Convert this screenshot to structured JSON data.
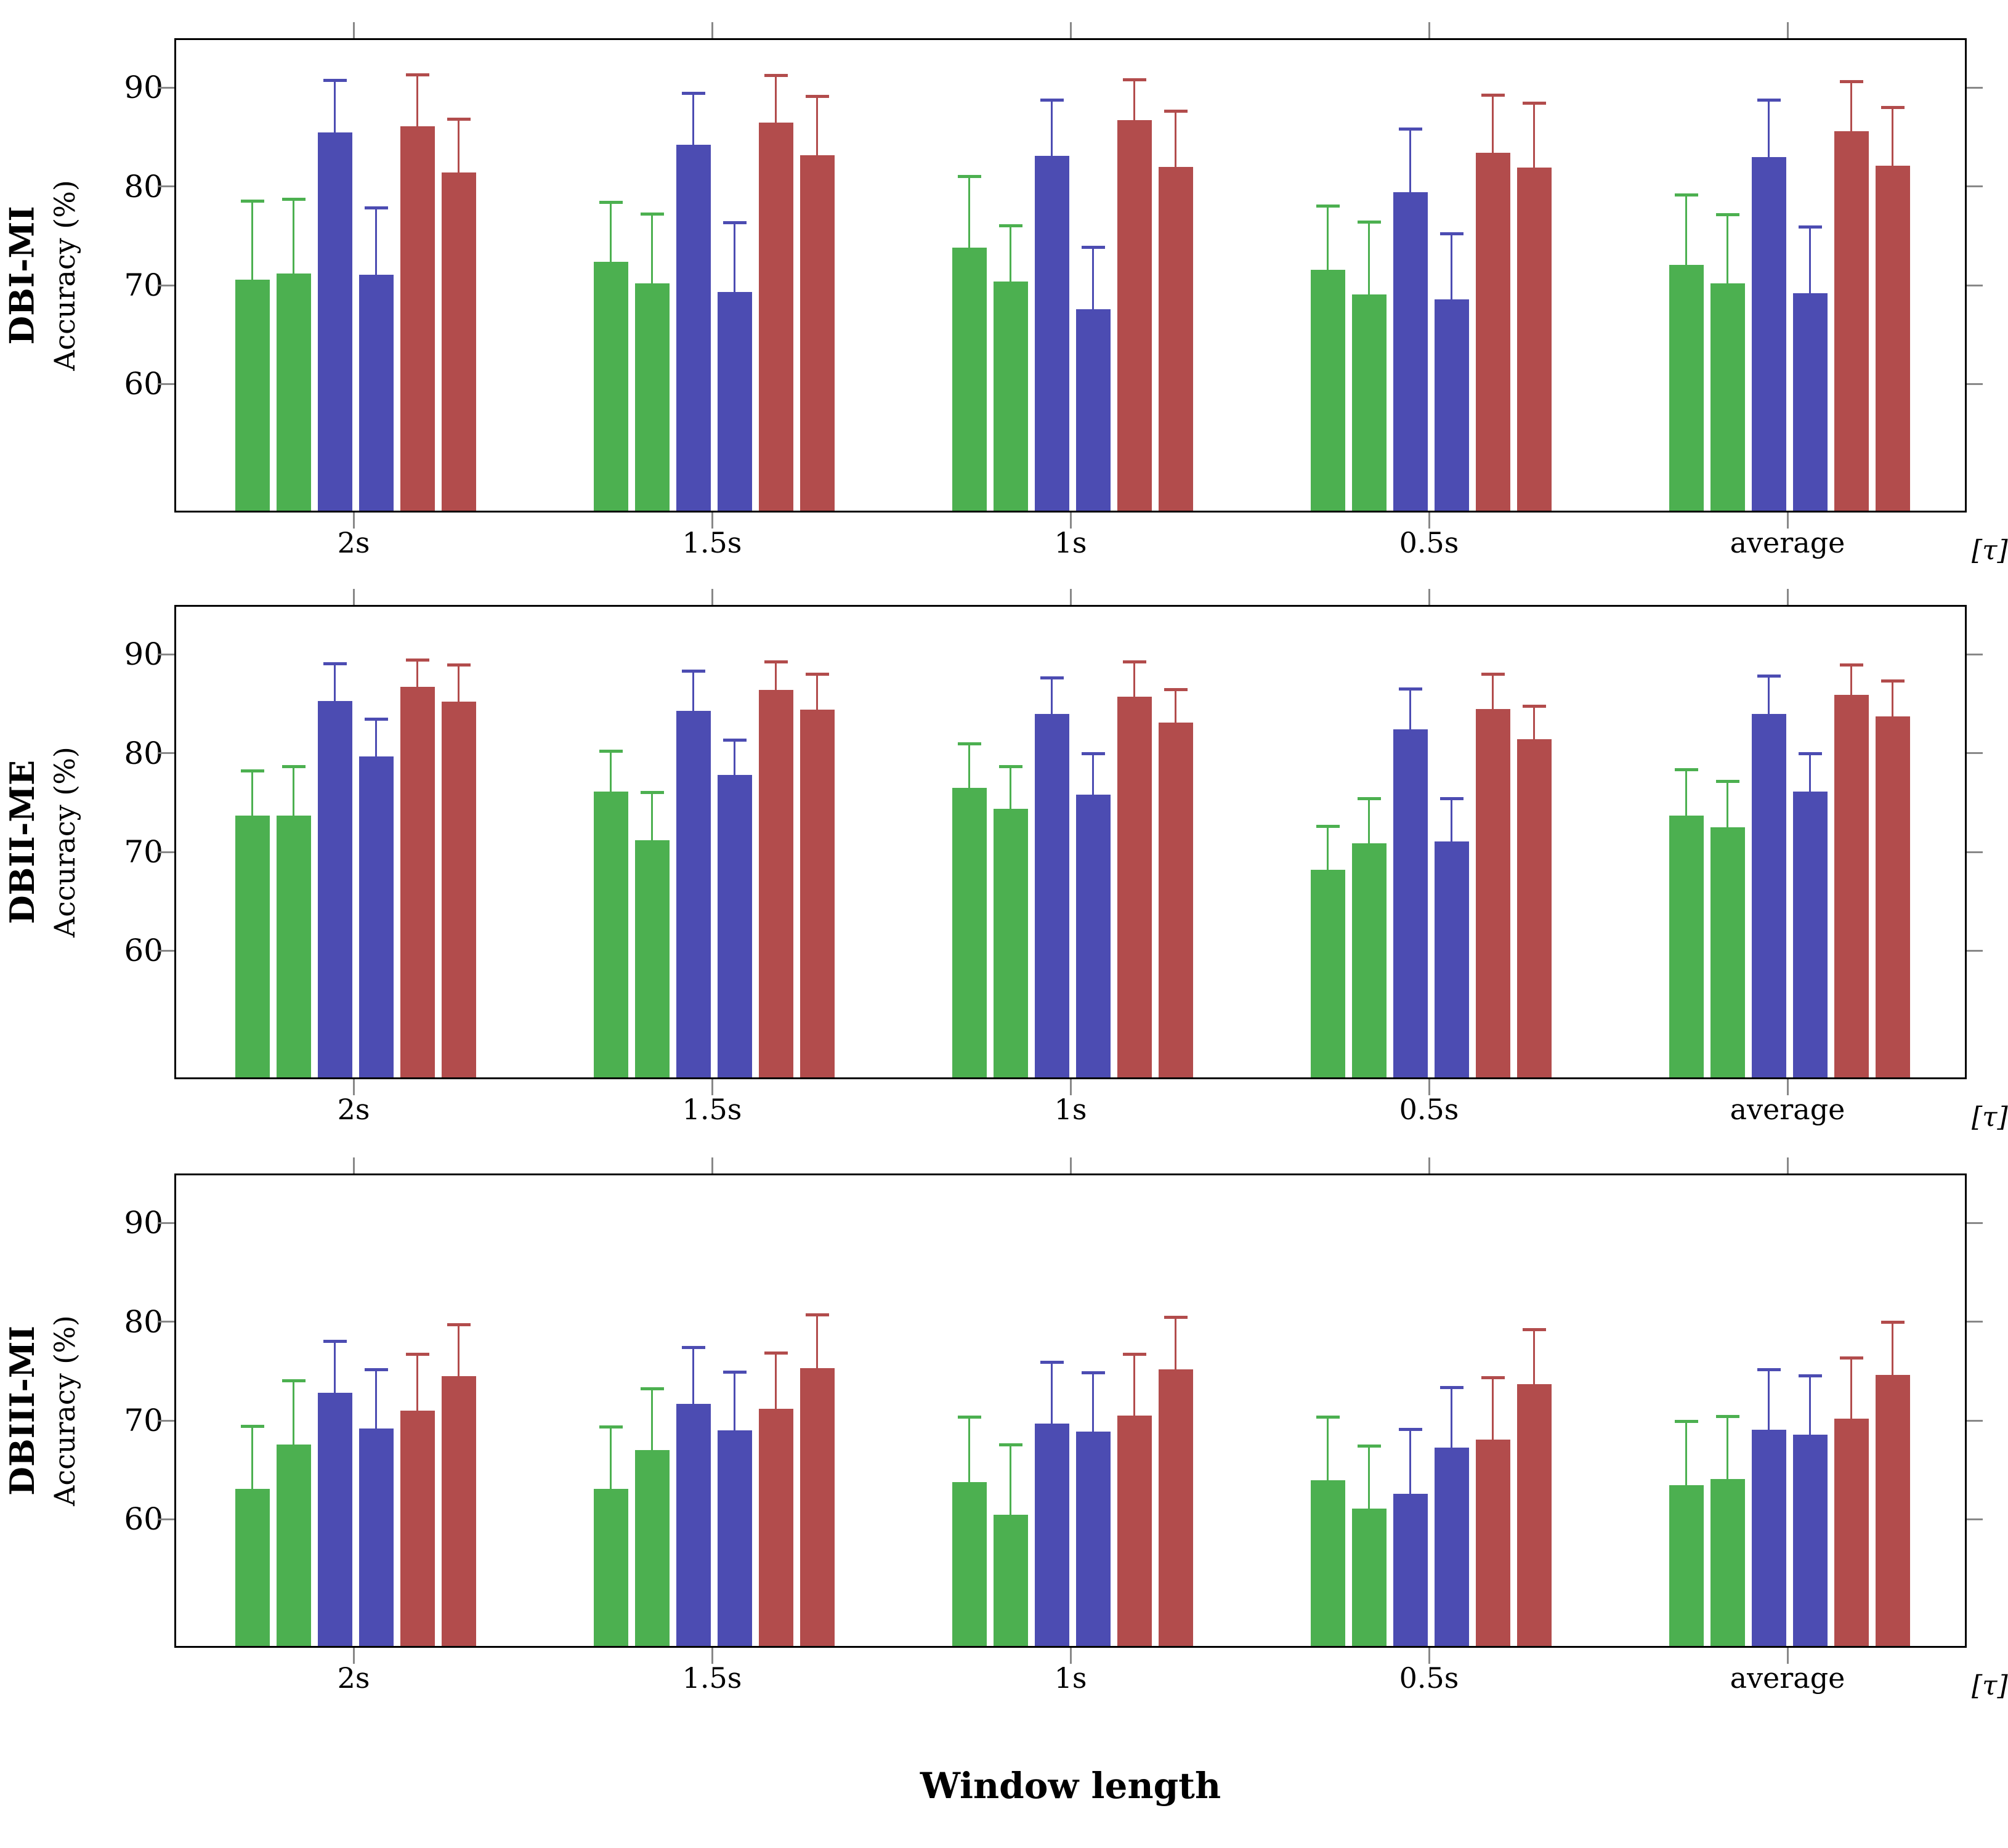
{
  "figure": {
    "xlabel": "Window length",
    "tau_label": "[τ]",
    "yaxis_label": "Accuracy (%)",
    "background": "#ffffff",
    "axis_color": "#000000",
    "tick_color": "#888888",
    "series_colors": {
      "green": "#4cb050",
      "blue": "#4c4cb2",
      "red": "#b24c4c"
    }
  },
  "chart_data": [
    {
      "type": "bar",
      "title": "DBI-MI",
      "ylabel": "Accuracy (%)",
      "categories": [
        "2s",
        "1.5s",
        "1s",
        "0.5s",
        "average"
      ],
      "yticks": [
        60,
        70,
        80,
        90
      ],
      "ylim": [
        47,
        95
      ],
      "grid": false,
      "legend": "none",
      "error_bars": "upper-only",
      "series": [
        {
          "name": "green hatched",
          "color": "#4cb050",
          "hatch": true,
          "values": [
            70.4,
            72.2,
            73.6,
            71.4,
            71.9
          ],
          "errors_plus": [
            7.9,
            6.0,
            7.2,
            6.4,
            7.0
          ]
        },
        {
          "name": "green solid",
          "color": "#4cb050",
          "hatch": false,
          "values": [
            71.0,
            70.0,
            70.2,
            68.9,
            70.0
          ],
          "errors_plus": [
            7.5,
            7.0,
            5.6,
            7.3,
            6.9
          ]
        },
        {
          "name": "blue hatched",
          "color": "#4c4cb2",
          "hatch": true,
          "values": [
            85.3,
            84.0,
            82.9,
            79.2,
            82.8
          ],
          "errors_plus": [
            5.2,
            5.2,
            5.6,
            6.4,
            5.7
          ]
        },
        {
          "name": "blue solid",
          "color": "#4c4cb2",
          "hatch": false,
          "values": [
            70.9,
            69.1,
            67.4,
            68.4,
            69.0
          ],
          "errors_plus": [
            6.7,
            7.0,
            6.2,
            6.6,
            6.7
          ]
        },
        {
          "name": "red hatched",
          "color": "#b24c4c",
          "hatch": true,
          "values": [
            85.9,
            86.3,
            86.5,
            83.2,
            85.4
          ],
          "errors_plus": [
            5.2,
            4.7,
            4.1,
            5.8,
            5.0
          ]
        },
        {
          "name": "red solid",
          "color": "#b24c4c",
          "hatch": false,
          "values": [
            81.2,
            83.0,
            81.8,
            81.7,
            81.9
          ],
          "errors_plus": [
            5.4,
            5.9,
            5.6,
            6.5,
            5.9
          ]
        }
      ]
    },
    {
      "type": "bar",
      "title": "DBII-ME",
      "ylabel": "Accuracy (%)",
      "categories": [
        "2s",
        "1.5s",
        "1s",
        "0.5s",
        "average"
      ],
      "yticks": [
        60,
        70,
        80,
        90
      ],
      "ylim": [
        47,
        95
      ],
      "grid": false,
      "legend": "none",
      "error_bars": "upper-only",
      "series": [
        {
          "name": "green hatched",
          "color": "#4cb050",
          "hatch": true,
          "values": [
            73.5,
            75.9,
            76.3,
            68.0,
            73.5
          ],
          "errors_plus": [
            4.5,
            4.1,
            4.4,
            4.4,
            4.6
          ]
        },
        {
          "name": "green solid",
          "color": "#4cb050",
          "hatch": false,
          "values": [
            73.5,
            71.0,
            74.2,
            70.7,
            72.3
          ],
          "errors_plus": [
            4.9,
            4.8,
            4.2,
            4.5,
            4.6
          ]
        },
        {
          "name": "blue hatched",
          "color": "#4c4cb2",
          "hatch": true,
          "values": [
            85.1,
            84.1,
            83.8,
            82.2,
            83.8
          ],
          "errors_plus": [
            3.7,
            4.0,
            3.6,
            4.1,
            3.8
          ]
        },
        {
          "name": "blue solid",
          "color": "#4c4cb2",
          "hatch": false,
          "values": [
            79.5,
            77.6,
            75.6,
            70.9,
            75.9
          ],
          "errors_plus": [
            3.7,
            3.5,
            4.1,
            4.3,
            3.8
          ]
        },
        {
          "name": "red hatched",
          "color": "#b24c4c",
          "hatch": true,
          "values": [
            86.5,
            86.2,
            85.5,
            84.3,
            85.7
          ],
          "errors_plus": [
            2.7,
            2.8,
            3.5,
            3.5,
            3.0
          ]
        },
        {
          "name": "red solid",
          "color": "#b24c4c",
          "hatch": false,
          "values": [
            85.0,
            84.2,
            82.9,
            81.2,
            83.5
          ],
          "errors_plus": [
            3.7,
            3.6,
            3.3,
            3.3,
            3.6
          ]
        }
      ]
    },
    {
      "type": "bar",
      "title": "DBIII-MI",
      "ylabel": "Accuracy (%)",
      "categories": [
        "2s",
        "1.5s",
        "1s",
        "0.5s",
        "average"
      ],
      "yticks": [
        60,
        70,
        80,
        90
      ],
      "ylim": [
        47,
        95
      ],
      "grid": false,
      "legend": "none",
      "error_bars": "upper-only",
      "series": [
        {
          "name": "green hatched",
          "color": "#4cb050",
          "hatch": true,
          "values": [
            62.9,
            62.9,
            63.6,
            63.8,
            63.3
          ],
          "errors_plus": [
            6.3,
            6.2,
            6.5,
            6.3,
            6.4
          ]
        },
        {
          "name": "green solid",
          "color": "#4cb050",
          "hatch": false,
          "values": [
            67.4,
            66.8,
            60.3,
            60.9,
            63.9
          ],
          "errors_plus": [
            6.4,
            6.2,
            7.0,
            6.3,
            6.3
          ]
        },
        {
          "name": "blue hatched",
          "color": "#4c4cb2",
          "hatch": true,
          "values": [
            72.6,
            71.5,
            69.5,
            62.4,
            68.9
          ],
          "errors_plus": [
            5.2,
            5.7,
            6.2,
            6.5,
            6.0
          ]
        },
        {
          "name": "blue solid",
          "color": "#4c4cb2",
          "hatch": false,
          "values": [
            69.0,
            68.8,
            68.7,
            67.1,
            68.4
          ],
          "errors_plus": [
            5.9,
            5.9,
            5.9,
            6.0,
            5.9
          ]
        },
        {
          "name": "red hatched",
          "color": "#b24c4c",
          "hatch": true,
          "values": [
            70.8,
            71.0,
            70.3,
            67.9,
            70.0
          ],
          "errors_plus": [
            5.7,
            5.6,
            6.2,
            6.2,
            6.1
          ]
        },
        {
          "name": "red solid",
          "color": "#b24c4c",
          "hatch": false,
          "values": [
            74.3,
            75.1,
            75.0,
            73.5,
            74.4
          ],
          "errors_plus": [
            5.2,
            5.4,
            5.2,
            5.5,
            5.3
          ]
        }
      ]
    }
  ]
}
